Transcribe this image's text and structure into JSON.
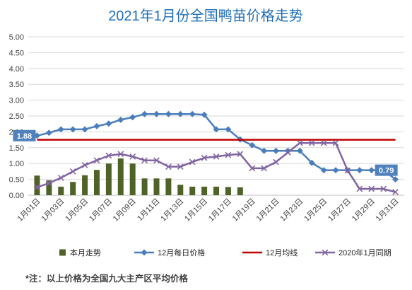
{
  "note": "*注：以上价格为全国九大主产区平均价格",
  "chart_data": {
    "type": "line",
    "title": "2021年1月份全国鸭苗价格走势",
    "x": [
      1,
      2,
      3,
      4,
      5,
      6,
      7,
      8,
      9,
      10,
      11,
      12,
      13,
      14,
      15,
      16,
      17,
      18,
      19,
      20,
      21,
      22,
      23,
      24,
      25,
      26,
      27,
      28,
      29,
      30,
      31
    ],
    "x_ticks": [
      {
        "x": 1,
        "label": "1月01日"
      },
      {
        "x": 3,
        "label": "1月03日"
      },
      {
        "x": 5,
        "label": "1月05日"
      },
      {
        "x": 7,
        "label": "1月07日"
      },
      {
        "x": 9,
        "label": "1月09日"
      },
      {
        "x": 11,
        "label": "1月11日"
      },
      {
        "x": 13,
        "label": "1月13日"
      },
      {
        "x": 15,
        "label": "1月15日"
      },
      {
        "x": 17,
        "label": "1月17日"
      },
      {
        "x": 19,
        "label": "1月19日"
      },
      {
        "x": 21,
        "label": "1月21日"
      },
      {
        "x": 23,
        "label": "1月23日"
      },
      {
        "x": 25,
        "label": "1月25日"
      },
      {
        "x": 27,
        "label": "1月27日"
      },
      {
        "x": 29,
        "label": "1月29日"
      },
      {
        "x": 31,
        "label": "1月31日"
      }
    ],
    "y_ticks": [
      "0.00",
      "0.50",
      "1.00",
      "1.50",
      "2.00",
      "2.50",
      "3.00",
      "3.50",
      "4.00",
      "4.50",
      "5.00"
    ],
    "ylim": [
      0,
      5
    ],
    "grid": true,
    "legend_position": "bottom",
    "series": [
      {
        "name": "本月走势",
        "type": "bar",
        "color": "#4f6228",
        "values": [
          0.62,
          0.47,
          0.27,
          0.42,
          0.63,
          0.8,
          1.0,
          1.16,
          1.0,
          0.53,
          0.53,
          0.53,
          0.33,
          0.27,
          0.27,
          0.27,
          0.26,
          0.25,
          null,
          null,
          null,
          null,
          null,
          null,
          null,
          null,
          null,
          null,
          null,
          null,
          null
        ]
      },
      {
        "name": "12月每日价格",
        "type": "line",
        "marker": "diamond",
        "color": "#4a7ebb",
        "values": [
          1.88,
          1.97,
          2.08,
          2.08,
          2.08,
          2.18,
          2.26,
          2.38,
          2.46,
          2.56,
          2.56,
          2.56,
          2.56,
          2.56,
          2.54,
          2.08,
          2.08,
          1.76,
          1.58,
          1.4,
          1.4,
          1.4,
          1.4,
          1.02,
          0.79,
          0.79,
          0.79,
          0.79,
          0.79,
          0.79,
          0.5
        ]
      },
      {
        "name": "12月均线",
        "type": "line",
        "color": "#c00000",
        "values": [
          1.75,
          1.75,
          1.75,
          1.75,
          1.75,
          1.75,
          1.75,
          1.75,
          1.75,
          1.75,
          1.75,
          1.75,
          1.75,
          1.75,
          1.75,
          1.75,
          1.75,
          1.75,
          1.75,
          1.75,
          1.75,
          1.75,
          1.75,
          1.75,
          1.75,
          1.75,
          1.75,
          1.75,
          1.75,
          1.75,
          1.75
        ]
      },
      {
        "name": "2020年1月同期",
        "type": "line",
        "marker": "x",
        "color": "#8064a2",
        "values": [
          0.25,
          0.38,
          0.55,
          0.75,
          0.95,
          1.1,
          1.25,
          1.3,
          1.22,
          1.1,
          1.1,
          0.9,
          0.9,
          1.05,
          1.18,
          1.22,
          1.27,
          1.3,
          0.85,
          0.85,
          1.05,
          1.35,
          1.65,
          1.65,
          1.65,
          1.65,
          0.78,
          0.2,
          0.2,
          0.2,
          0.1
        ]
      }
    ],
    "annotations": [
      {
        "label": "1.88",
        "x": 1,
        "y": 1.88
      },
      {
        "label": "0.79",
        "x": 30,
        "y": 0.79
      }
    ]
  }
}
